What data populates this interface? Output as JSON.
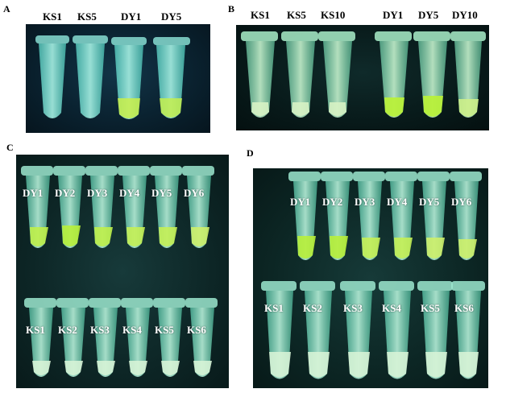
{
  "panels": {
    "a": {
      "letter": "A",
      "labels": [
        "KS1",
        "KS5",
        "DY1",
        "DY5"
      ]
    },
    "b": {
      "letter": "B",
      "labels": [
        "KS1",
        "KS5",
        "KS10",
        "DY1",
        "DY5",
        "DY10"
      ]
    },
    "c": {
      "letter": "C",
      "top_labels": [
        "DY1",
        "DY2",
        "DY3",
        "DY4",
        "DY5",
        "DY6"
      ],
      "bottom_labels": [
        "KS1",
        "KS2",
        "KS3",
        "KS4",
        "KS5",
        "KS6"
      ]
    },
    "d": {
      "letter": "D",
      "top_labels": [
        "DY1",
        "DY2",
        "DY3",
        "DY4",
        "DY5",
        "DY6"
      ],
      "bottom_labels": [
        "KS1",
        "KS2",
        "KS3",
        "KS4",
        "KS5",
        "KS6"
      ]
    }
  },
  "colors": {
    "tube_clear": "#7fe6d8",
    "liquid_negative": "#c9f2dd",
    "liquid_positive": "#b8f03a"
  }
}
